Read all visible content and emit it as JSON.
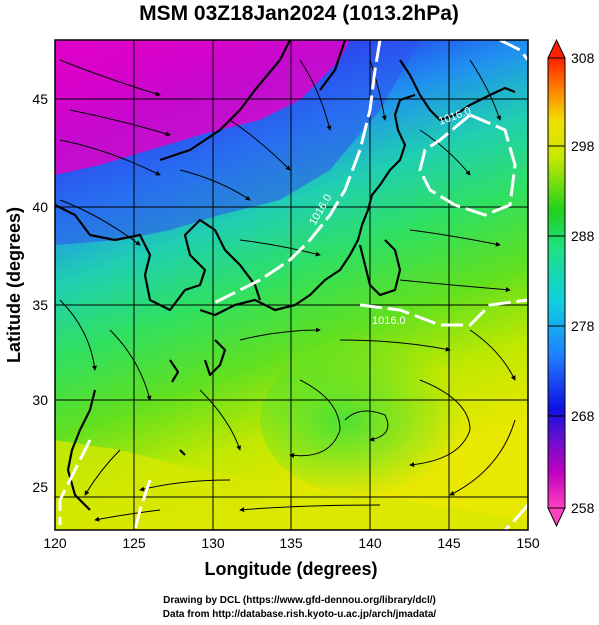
{
  "title": "MSM 03Z18Jan2024 (1013.2hPa)",
  "xlabel": "Longitude (degrees)",
  "ylabel": "Latitude  (degrees)",
  "x_ticks": [
    "120",
    "125",
    "130",
    "135",
    "140",
    "145",
    "150"
  ],
  "y_ticks": [
    "25",
    "30",
    "35",
    "40",
    "45"
  ],
  "colorbar_ticks": [
    "258",
    "268",
    "278",
    "288",
    "298",
    "308"
  ],
  "contour_labels": [
    "1016.0",
    "1016.0",
    "1016.0"
  ],
  "credit_line1": "Drawing by DCL (https://www.gfd-dennou.org/library/dcl/)",
  "credit_line2": "Data from http://database.rish.kyoto-u.ac.jp/arch/jmadata/",
  "map": {
    "lon_range": [
      120,
      150
    ],
    "lat_range": [
      22.4,
      47.6
    ],
    "colorbar_range": [
      258,
      308
    ],
    "colors": {
      "magenta": "#e600c8",
      "blue": "#2040ff",
      "cyan": "#10d0d0",
      "green": "#20d020",
      "yellow": "#e8e800",
      "red": "#ff2000"
    }
  }
}
